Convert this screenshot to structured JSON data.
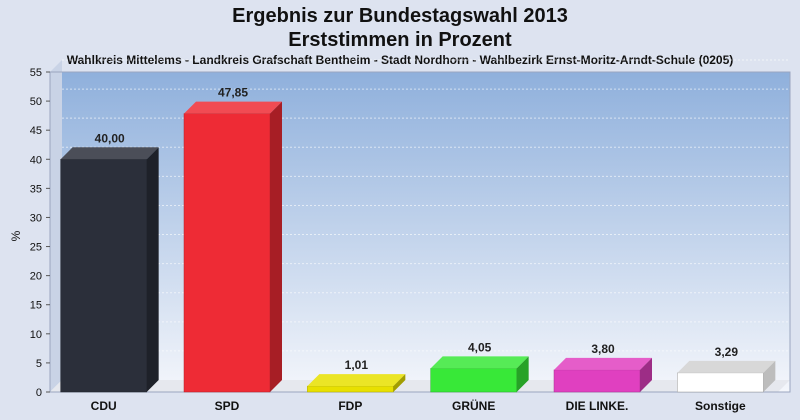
{
  "chart_data": {
    "type": "bar",
    "title": "Ergebnis zur Bundestagswahl 2013",
    "subtitle_line": "Erststimmen in Prozent",
    "caption": "Wahlkreis Mittelems - Landkreis Grafschaft Bentheim - Stadt Nordhorn - Wahlbezirk Ernst-Moritz-Arndt-Schule (0205)",
    "ylabel": "%",
    "ylim": [
      0,
      55
    ],
    "yticks": [
      0,
      5,
      10,
      15,
      20,
      25,
      30,
      35,
      40,
      45,
      50,
      55
    ],
    "grid": true,
    "categories": [
      "CDU",
      "SPD",
      "FDP",
      "GRÜNE",
      "DIE LINKE.",
      "Sonstige"
    ],
    "values": [
      40.0,
      47.85,
      1.01,
      4.05,
      3.8,
      3.29
    ],
    "value_labels": [
      "40,00",
      "47,85",
      "1,01",
      "4,05",
      "3,80",
      "3,29"
    ],
    "colors": [
      "#2b2f3a",
      "#ee2b35",
      "#e8e000",
      "#38e838",
      "#e040c0",
      "#ffffff"
    ]
  }
}
